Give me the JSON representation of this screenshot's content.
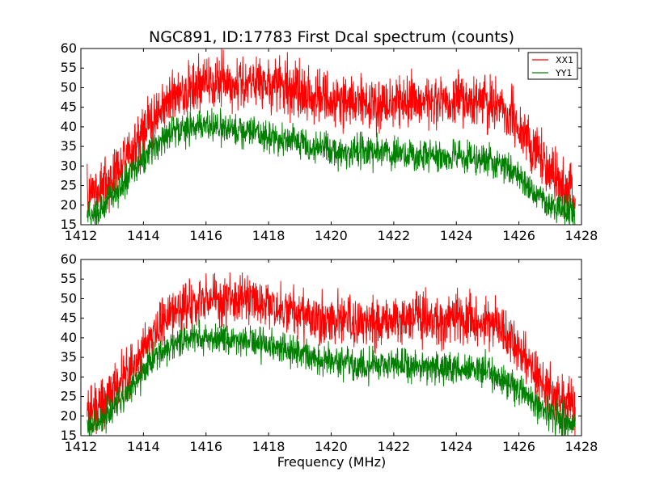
{
  "chart_data": [
    {
      "panel": "top",
      "type": "line",
      "title": "NGC891, ID:17783 First Dcal spectrum (counts)",
      "xlabel": "",
      "ylabel": "",
      "xlim": [
        1412,
        1428
      ],
      "ylim": [
        15,
        60
      ],
      "xticks": [
        1412,
        1414,
        1416,
        1418,
        1420,
        1422,
        1424,
        1426,
        1428
      ],
      "yticks": [
        15,
        20,
        25,
        30,
        35,
        40,
        45,
        50,
        55,
        60
      ],
      "legend": {
        "placement": "top-right",
        "entries": [
          "XX1",
          "YY1"
        ]
      },
      "series": [
        {
          "name": "XX1",
          "color": "#ff0000",
          "noise": 3.4,
          "profile": [
            [
              1412.2,
              23
            ],
            [
              1412.6,
              24.5
            ],
            [
              1413.0,
              27
            ],
            [
              1413.5,
              32
            ],
            [
              1414.0,
              38
            ],
            [
              1414.5,
              44
            ],
            [
              1415.0,
              47.5
            ],
            [
              1415.5,
              50
            ],
            [
              1416.0,
              51.5
            ],
            [
              1416.5,
              52
            ],
            [
              1417.0,
              52
            ],
            [
              1417.5,
              51.5
            ],
            [
              1418.0,
              51
            ],
            [
              1418.5,
              50
            ],
            [
              1419.0,
              49
            ],
            [
              1419.5,
              48
            ],
            [
              1420.0,
              46.5
            ],
            [
              1420.5,
              46
            ],
            [
              1421.0,
              46
            ],
            [
              1421.5,
              46
            ],
            [
              1422.0,
              46.5
            ],
            [
              1422.5,
              47
            ],
            [
              1423.0,
              47
            ],
            [
              1423.5,
              47
            ],
            [
              1424.0,
              47.5
            ],
            [
              1424.5,
              46.5
            ],
            [
              1425.0,
              46
            ],
            [
              1425.5,
              44.5
            ],
            [
              1426.0,
              40
            ],
            [
              1426.5,
              34
            ],
            [
              1427.0,
              28
            ],
            [
              1427.5,
              24
            ],
            [
              1427.8,
              23
            ]
          ]
        },
        {
          "name": "YY1",
          "color": "#008000",
          "noise": 2.0,
          "profile": [
            [
              1412.2,
              17.5
            ],
            [
              1412.6,
              19
            ],
            [
              1413.0,
              22
            ],
            [
              1413.5,
              27
            ],
            [
              1414.0,
              32
            ],
            [
              1414.5,
              36.5
            ],
            [
              1415.0,
              39
            ],
            [
              1415.5,
              40
            ],
            [
              1416.0,
              40
            ],
            [
              1416.5,
              39.8
            ],
            [
              1417.0,
              39
            ],
            [
              1417.5,
              38.5
            ],
            [
              1418.0,
              38
            ],
            [
              1418.5,
              37
            ],
            [
              1419.0,
              36
            ],
            [
              1419.5,
              35
            ],
            [
              1420.0,
              34
            ],
            [
              1420.5,
              33.5
            ],
            [
              1421.0,
              33.5
            ],
            [
              1421.5,
              33
            ],
            [
              1422.0,
              33
            ],
            [
              1422.5,
              33
            ],
            [
              1423.0,
              32.5
            ],
            [
              1423.5,
              32.5
            ],
            [
              1424.0,
              32.5
            ],
            [
              1424.5,
              32
            ],
            [
              1425.0,
              31.5
            ],
            [
              1425.5,
              30
            ],
            [
              1426.0,
              27.5
            ],
            [
              1426.5,
              23.5
            ],
            [
              1427.0,
              20
            ],
            [
              1427.5,
              18.5
            ],
            [
              1427.8,
              18
            ]
          ]
        }
      ]
    },
    {
      "panel": "bottom",
      "type": "line",
      "title": "",
      "xlabel": "Frequency (MHz)",
      "ylabel": "",
      "xlim": [
        1412,
        1428
      ],
      "ylim": [
        15,
        60
      ],
      "xticks": [
        1412,
        1414,
        1416,
        1418,
        1420,
        1422,
        1424,
        1426,
        1428
      ],
      "yticks": [
        15,
        20,
        25,
        30,
        35,
        40,
        45,
        50,
        55,
        60
      ],
      "series": [
        {
          "name": "XX1",
          "color": "#ff0000",
          "noise": 3.2,
          "profile": [
            [
              1412.2,
              22
            ],
            [
              1412.6,
              23
            ],
            [
              1413.0,
              26
            ],
            [
              1413.5,
              31
            ],
            [
              1414.0,
              37
            ],
            [
              1414.5,
              42.5
            ],
            [
              1415.0,
              46
            ],
            [
              1415.5,
              48
            ],
            [
              1416.0,
              49.5
            ],
            [
              1416.5,
              50
            ],
            [
              1417.0,
              50
            ],
            [
              1417.5,
              49.5
            ],
            [
              1418.0,
              48.5
            ],
            [
              1418.5,
              47.5
            ],
            [
              1419.0,
              46
            ],
            [
              1419.5,
              45
            ],
            [
              1420.0,
              44.5
            ],
            [
              1420.5,
              44
            ],
            [
              1421.0,
              44
            ],
            [
              1421.5,
              44
            ],
            [
              1422.0,
              44.5
            ],
            [
              1422.5,
              44.5
            ],
            [
              1423.0,
              45
            ],
            [
              1423.5,
              45
            ],
            [
              1424.0,
              45
            ],
            [
              1424.5,
              44
            ],
            [
              1425.0,
              43.5
            ],
            [
              1425.5,
              42
            ],
            [
              1426.0,
              37
            ],
            [
              1426.5,
              31
            ],
            [
              1427.0,
              26
            ],
            [
              1427.5,
              23
            ],
            [
              1427.8,
              22
            ]
          ]
        },
        {
          "name": "YY1",
          "color": "#008000",
          "noise": 2.0,
          "profile": [
            [
              1412.2,
              17.5
            ],
            [
              1412.6,
              19
            ],
            [
              1413.0,
              22
            ],
            [
              1413.5,
              26.5
            ],
            [
              1414.0,
              31.5
            ],
            [
              1414.5,
              36
            ],
            [
              1415.0,
              38.5
            ],
            [
              1415.5,
              39.5
            ],
            [
              1416.0,
              40
            ],
            [
              1416.5,
              39.5
            ],
            [
              1417.0,
              39
            ],
            [
              1417.5,
              38.5
            ],
            [
              1418.0,
              38
            ],
            [
              1418.5,
              37
            ],
            [
              1419.0,
              35.5
            ],
            [
              1419.5,
              34.5
            ],
            [
              1420.0,
              34
            ],
            [
              1420.5,
              33.5
            ],
            [
              1421.0,
              33
            ],
            [
              1421.5,
              33
            ],
            [
              1422.0,
              33
            ],
            [
              1422.5,
              32.5
            ],
            [
              1423.0,
              32.5
            ],
            [
              1423.5,
              32
            ],
            [
              1424.0,
              32
            ],
            [
              1424.5,
              32
            ],
            [
              1425.0,
              31
            ],
            [
              1425.5,
              29.5
            ],
            [
              1426.0,
              27
            ],
            [
              1426.5,
              23.5
            ],
            [
              1427.0,
              20
            ],
            [
              1427.5,
              18.5
            ],
            [
              1427.8,
              18
            ]
          ]
        }
      ]
    }
  ]
}
